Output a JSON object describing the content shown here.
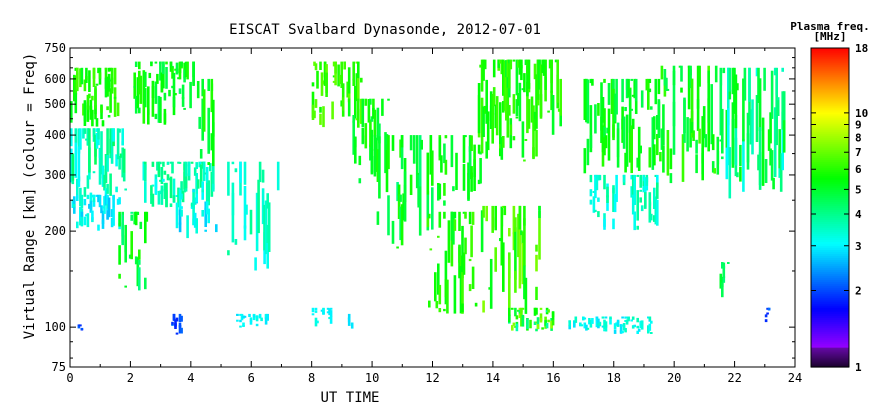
{
  "chart_data": {
    "type": "heatmap",
    "title": "EISCAT Svalbard Dynasonde, 2012-07-01",
    "xlabel": "UT TIME",
    "ylabel": "Virtual Range [km] (colour = Freq)",
    "xlim": [
      0,
      24
    ],
    "x_ticks": [
      0,
      2,
      4,
      6,
      8,
      10,
      12,
      14,
      16,
      18,
      20,
      22,
      24
    ],
    "ylim": [
      75,
      750
    ],
    "y_scale": "log",
    "y_ticks": [
      75,
      100,
      200,
      300,
      400,
      500,
      600,
      750
    ],
    "grid": false,
    "colorbar": {
      "title_line1": "Plasma freq.",
      "title_line2": "[MHz]",
      "scale": "log",
      "range": [
        1,
        18
      ],
      "ticks": [
        1,
        2,
        3,
        4,
        5,
        6,
        7,
        8,
        9,
        10,
        18
      ]
    },
    "clusters": [
      {
        "x": [
          0.0,
          1.6
        ],
        "y": [
          420,
          650
        ],
        "f": [
          5.0,
          6.5
        ],
        "density": 0.55
      },
      {
        "x": [
          0.0,
          1.8
        ],
        "y": [
          230,
          420
        ],
        "f": [
          3.0,
          4.5
        ],
        "density": 0.6
      },
      {
        "x": [
          0.0,
          1.6
        ],
        "y": [
          200,
          260
        ],
        "f": [
          2.6,
          3.4
        ],
        "density": 0.4
      },
      {
        "x": [
          1.6,
          2.5
        ],
        "y": [
          130,
          230
        ],
        "f": [
          4.0,
          6.0
        ],
        "density": 0.35
      },
      {
        "x": [
          2.1,
          4.1
        ],
        "y": [
          430,
          680
        ],
        "f": [
          4.5,
          6.0
        ],
        "density": 0.55
      },
      {
        "x": [
          2.4,
          4.7
        ],
        "y": [
          235,
          330
        ],
        "f": [
          3.0,
          4.2
        ],
        "density": 0.55
      },
      {
        "x": [
          3.5,
          4.8
        ],
        "y": [
          190,
          270
        ],
        "f": [
          2.6,
          3.4
        ],
        "density": 0.3
      },
      {
        "x": [
          4.2,
          4.8
        ],
        "y": [
          300,
          600
        ],
        "f": [
          4.5,
          6.0
        ],
        "density": 0.3
      },
      {
        "x": [
          5.2,
          6.9
        ],
        "y": [
          150,
          330
        ],
        "f": [
          3.0,
          4.0
        ],
        "density": 0.2
      },
      {
        "x": [
          8.0,
          9.6
        ],
        "y": [
          420,
          680
        ],
        "f": [
          5.5,
          7.0
        ],
        "density": 0.5
      },
      {
        "x": [
          9.2,
          10.5
        ],
        "y": [
          280,
          520
        ],
        "f": [
          4.5,
          6.0
        ],
        "density": 0.35
      },
      {
        "x": [
          10.0,
          12.0
        ],
        "y": [
          170,
          400
        ],
        "f": [
          4.0,
          6.0
        ],
        "density": 0.35
      },
      {
        "x": [
          11.8,
          13.4
        ],
        "y": [
          110,
          230
        ],
        "f": [
          5.0,
          6.5
        ],
        "density": 0.4
      },
      {
        "x": [
          12.0,
          13.6
        ],
        "y": [
          240,
          400
        ],
        "f": [
          4.5,
          6.0
        ],
        "density": 0.35
      },
      {
        "x": [
          13.5,
          16.2
        ],
        "y": [
          330,
          690
        ],
        "f": [
          5.0,
          6.5
        ],
        "density": 0.6
      },
      {
        "x": [
          13.5,
          15.5
        ],
        "y": [
          110,
          240
        ],
        "f": [
          5.0,
          7.5
        ],
        "density": 0.35
      },
      {
        "x": [
          14.5,
          16.0
        ],
        "y": [
          97,
          115
        ],
        "f": [
          3.5,
          8.0
        ],
        "density": 0.5
      },
      {
        "x": [
          16.5,
          19.2
        ],
        "y": [
          95,
          108
        ],
        "f": [
          2.8,
          3.6
        ],
        "density": 0.5
      },
      {
        "x": [
          17.0,
          19.5
        ],
        "y": [
          300,
          600
        ],
        "f": [
          4.5,
          6.0
        ],
        "density": 0.55
      },
      {
        "x": [
          17.2,
          19.5
        ],
        "y": [
          200,
          300
        ],
        "f": [
          3.0,
          4.0
        ],
        "density": 0.35
      },
      {
        "x": [
          19.5,
          21.5
        ],
        "y": [
          280,
          660
        ],
        "f": [
          4.5,
          6.5
        ],
        "density": 0.5
      },
      {
        "x": [
          21.5,
          23.6
        ],
        "y": [
          250,
          650
        ],
        "f": [
          3.0,
          5.5
        ],
        "density": 0.5
      },
      {
        "x": [
          21.5,
          21.8
        ],
        "y": [
          120,
          160
        ],
        "f": [
          4.0,
          5.0
        ],
        "density": 0.3
      },
      {
        "x": [
          3.3,
          3.7
        ],
        "y": [
          95,
          110
        ],
        "f": [
          1.8,
          2.3
        ],
        "density": 0.3
      },
      {
        "x": [
          23.0,
          23.1
        ],
        "y": [
          100,
          115
        ],
        "f": [
          1.8,
          2.2
        ],
        "density": 0.4
      },
      {
        "x": [
          0.2,
          0.4
        ],
        "y": [
          97,
          102
        ],
        "f": [
          1.8,
          2.1
        ],
        "density": 0.3
      },
      {
        "x": [
          8.0,
          8.6
        ],
        "y": [
          100,
          115
        ],
        "f": [
          2.8,
          3.3
        ],
        "density": 0.4
      },
      {
        "x": [
          9.2,
          9.5
        ],
        "y": [
          98,
          110
        ],
        "f": [
          2.8,
          3.3
        ],
        "density": 0.3
      },
      {
        "x": [
          5.5,
          6.5
        ],
        "y": [
          100,
          110
        ],
        "f": [
          2.8,
          3.3
        ],
        "density": 0.3
      }
    ]
  }
}
